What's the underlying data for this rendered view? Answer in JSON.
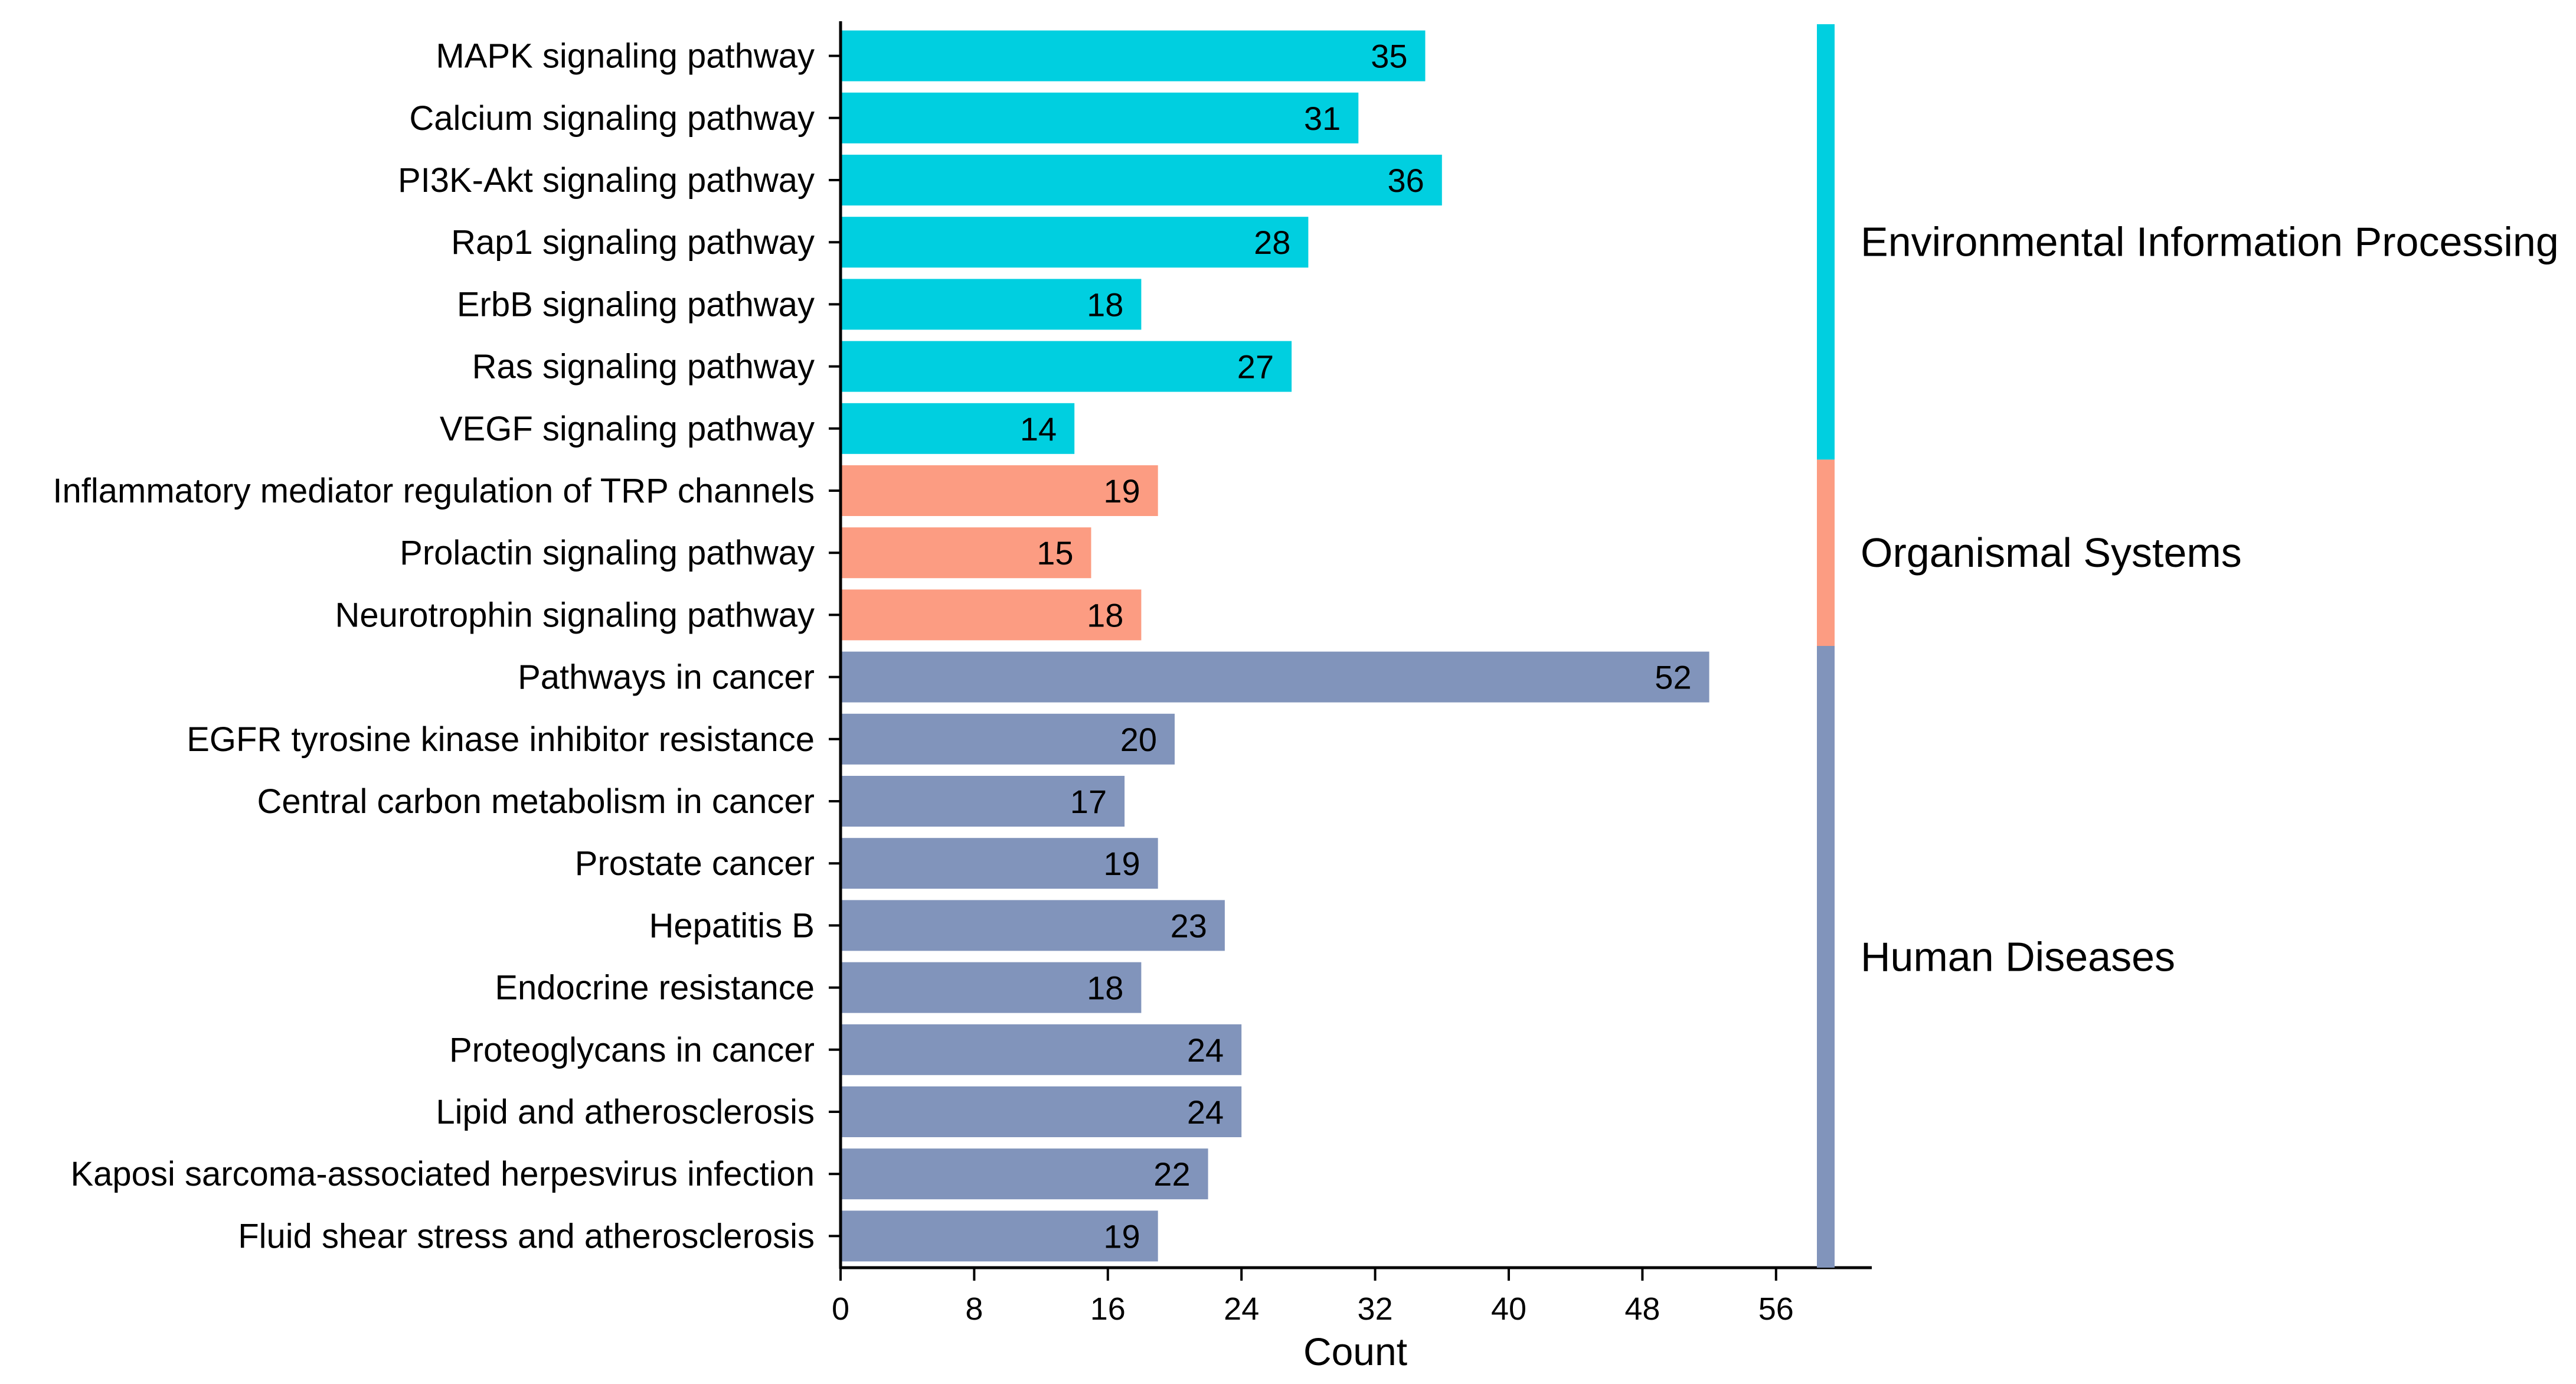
{
  "chart_data": {
    "type": "bar",
    "orientation": "horizontal",
    "title": "",
    "xlabel": "Count",
    "ylabel": "",
    "xlim": [
      0,
      59
    ],
    "xticks": [
      0,
      8,
      16,
      24,
      32,
      40,
      48,
      56
    ],
    "grid": false,
    "categories": [
      "MAPK signaling pathway",
      "Calcium signaling pathway",
      "PI3K-Akt signaling pathway",
      "Rap1 signaling pathway",
      "ErbB signaling pathway",
      "Ras signaling pathway",
      "VEGF signaling pathway",
      "Inflammatory mediator regulation of TRP channels",
      "Prolactin signaling pathway",
      "Neurotrophin signaling pathway",
      "Pathways in cancer",
      "EGFR tyrosine kinase inhibitor resistance",
      "Central carbon metabolism in cancer",
      "Prostate cancer",
      "Hepatitis B",
      "Endocrine resistance",
      "Proteoglycans in cancer",
      "Lipid and atherosclerosis",
      "Kaposi sarcoma-associated herpesvirus infection",
      "Fluid shear stress and atherosclerosis"
    ],
    "values": [
      35,
      31,
      36,
      28,
      18,
      27,
      14,
      19,
      15,
      18,
      52,
      20,
      17,
      19,
      23,
      18,
      24,
      24,
      22,
      19
    ],
    "group_of_category": [
      0,
      0,
      0,
      0,
      0,
      0,
      0,
      1,
      1,
      1,
      2,
      2,
      2,
      2,
      2,
      2,
      2,
      2,
      2,
      2
    ],
    "groups": [
      {
        "name": "Environmental Information Processing",
        "color": "#00CFE0"
      },
      {
        "name": "Organismal Systems",
        "color": "#FC9C82"
      },
      {
        "name": "Human Diseases",
        "color": "#8194BB"
      }
    ]
  }
}
